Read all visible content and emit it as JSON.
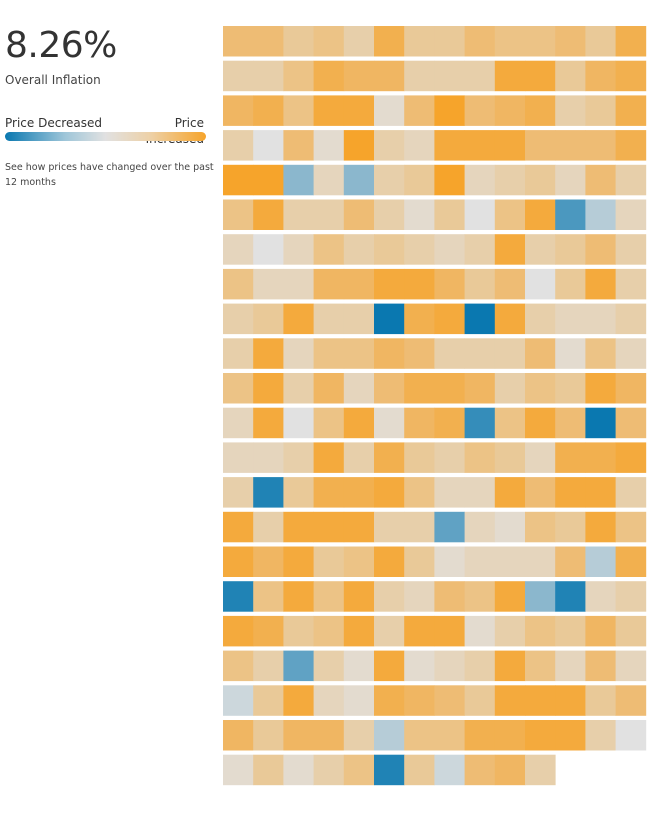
{
  "header": {
    "overall_value": "8.26%",
    "overall_label": "Overall Inflation"
  },
  "legend": {
    "low_label": "Price Decreased",
    "high_label": "Price Increased",
    "low_color": "#0a78b0",
    "mid_color": "#e1e1e1",
    "high_color": "#f6a42b"
  },
  "note": "See how prices have changed over the past 12 months",
  "chart_data": {
    "type": "heatmap",
    "title": "",
    "scale_note": "cell values are relative price-change levels: -1 = strongest decrease, 0 = unchanged, 1 = strongest increase",
    "rows": [
      [
        0.6,
        0.6,
        0.4,
        0.5,
        0.3,
        0.8,
        0.4,
        0.4,
        0.6,
        0.5,
        0.5,
        0.6,
        0.4,
        0.8
      ],
      [
        0.3,
        0.3,
        0.5,
        0.8,
        0.7,
        0.7,
        0.3,
        0.3,
        0.3,
        0.9,
        0.9,
        0.4,
        0.7,
        0.8
      ],
      [
        0.7,
        0.8,
        0.5,
        0.9,
        0.9,
        0.1,
        0.6,
        1.0,
        0.6,
        0.7,
        0.8,
        0.3,
        0.4,
        0.8
      ],
      [
        0.3,
        0.0,
        0.6,
        0.1,
        1.0,
        0.3,
        0.2,
        0.9,
        0.9,
        0.9,
        0.6,
        0.6,
        0.6,
        0.8
      ],
      [
        1.0,
        1.0,
        -0.4,
        0.2,
        -0.4,
        0.3,
        0.4,
        1.0,
        0.2,
        0.3,
        0.4,
        0.2,
        0.6,
        0.3
      ],
      [
        0.5,
        0.9,
        0.3,
        0.3,
        0.6,
        0.3,
        0.1,
        0.4,
        0.0,
        0.5,
        0.9,
        -0.7,
        -0.2,
        0.2
      ],
      [
        0.2,
        0.0,
        0.2,
        0.5,
        0.3,
        0.4,
        0.3,
        0.2,
        0.3,
        0.9,
        0.3,
        0.4,
        0.6,
        0.3
      ],
      [
        0.5,
        0.2,
        0.2,
        0.7,
        0.7,
        0.9,
        0.9,
        0.7,
        0.4,
        0.6,
        0.0,
        0.4,
        0.9,
        0.3
      ],
      [
        0.3,
        0.4,
        0.9,
        0.3,
        0.3,
        -1.0,
        0.8,
        0.9,
        -1.0,
        0.9,
        0.3,
        0.2,
        0.2,
        0.3
      ],
      [
        0.3,
        0.9,
        0.2,
        0.5,
        0.5,
        0.7,
        0.6,
        0.3,
        0.3,
        0.3,
        0.6,
        0.1,
        0.5,
        0.2
      ],
      [
        0.5,
        0.9,
        0.3,
        0.7,
        0.2,
        0.6,
        0.8,
        0.8,
        0.7,
        0.3,
        0.5,
        0.4,
        0.9,
        0.7
      ],
      [
        0.2,
        0.9,
        0.0,
        0.5,
        0.9,
        0.1,
        0.7,
        0.8,
        -0.8,
        0.5,
        0.9,
        0.6,
        -1.0,
        0.6
      ],
      [
        0.2,
        0.2,
        0.3,
        0.9,
        0.3,
        0.8,
        0.4,
        0.3,
        0.5,
        0.4,
        0.2,
        0.8,
        0.8,
        0.9
      ],
      [
        0.3,
        -0.9,
        0.4,
        0.8,
        0.8,
        0.9,
        0.5,
        0.2,
        0.2,
        0.9,
        0.6,
        0.9,
        0.9,
        0.3
      ],
      [
        0.9,
        0.3,
        0.9,
        0.9,
        0.9,
        0.3,
        0.3,
        -0.6,
        0.2,
        0.1,
        0.5,
        0.4,
        0.9,
        0.5
      ],
      [
        0.9,
        0.7,
        0.9,
        0.4,
        0.5,
        0.9,
        0.4,
        0.1,
        0.2,
        0.2,
        0.2,
        0.6,
        -0.2,
        0.8
      ],
      [
        -0.9,
        0.5,
        0.9,
        0.5,
        0.9,
        0.3,
        0.2,
        0.6,
        0.5,
        0.9,
        -0.4,
        -0.9,
        0.2,
        0.3
      ],
      [
        0.9,
        0.8,
        0.4,
        0.5,
        0.9,
        0.3,
        0.9,
        0.9,
        0.1,
        0.3,
        0.5,
        0.4,
        0.7,
        0.4
      ],
      [
        0.5,
        0.3,
        -0.6,
        0.3,
        0.1,
        0.9,
        0.1,
        0.2,
        0.3,
        0.9,
        0.5,
        0.2,
        0.6,
        0.2
      ],
      [
        -0.1,
        0.4,
        0.9,
        0.2,
        0.1,
        0.8,
        0.7,
        0.6,
        0.4,
        0.9,
        0.9,
        0.9,
        0.4,
        0.6
      ],
      [
        0.7,
        0.4,
        0.7,
        0.7,
        0.3,
        -0.2,
        0.5,
        0.5,
        0.8,
        0.8,
        0.9,
        0.9,
        0.3,
        0.0
      ],
      [
        0.1,
        0.4,
        0.1,
        0.3,
        0.5,
        -0.9,
        0.4,
        -0.1,
        0.6,
        0.7,
        0.3
      ]
    ]
  }
}
